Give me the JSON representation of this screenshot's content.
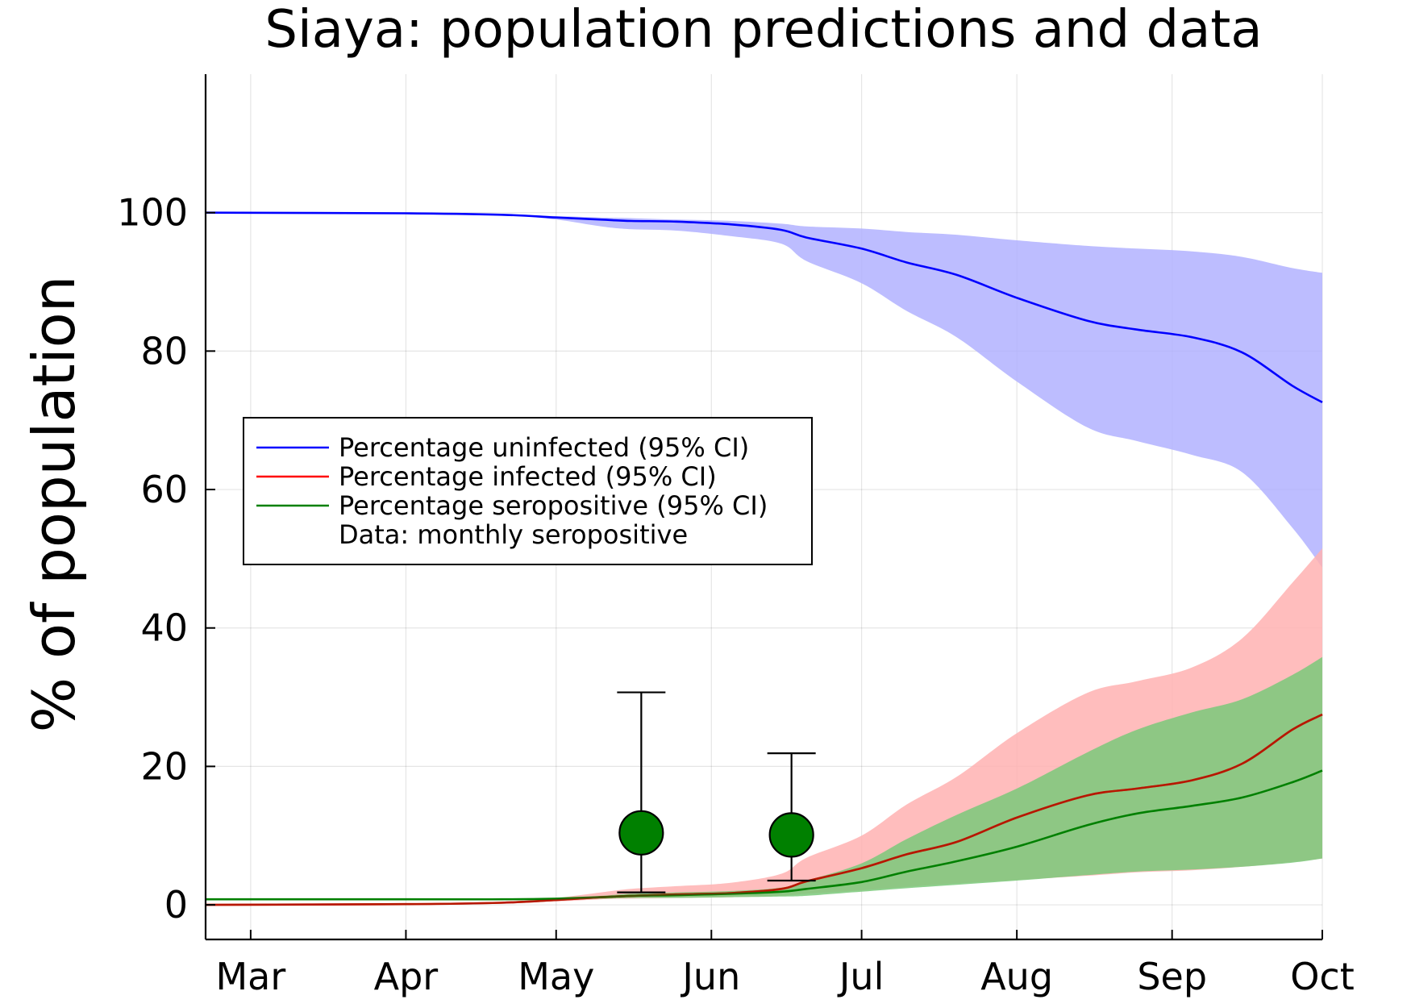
{
  "chart_data": {
    "type": "line",
    "title": "Siaya: population predictions and data",
    "xlabel": "",
    "ylabel": "% of population",
    "x_axis": {
      "type": "date",
      "range": [
        "2020-02-21",
        "2020-10-01"
      ],
      "tick_dates": [
        "2020-03-01",
        "2020-04-01",
        "2020-05-01",
        "2020-06-01",
        "2020-07-01",
        "2020-08-01",
        "2020-09-01",
        "2020-10-01"
      ],
      "tick_labels": [
        "Mar",
        "Apr",
        "May",
        "Jun",
        "Jul",
        "Aug",
        "Sep",
        "Oct"
      ]
    },
    "y_axis": {
      "range": [
        -5,
        120
      ],
      "ticks": [
        0,
        20,
        40,
        60,
        80,
        100
      ],
      "tick_labels": [
        "0",
        "20",
        "40",
        "60",
        "80",
        "100"
      ]
    },
    "grid": true,
    "legend_position": "left",
    "series": [
      {
        "name": "Percentage uninfected (95% CI)",
        "color": "#0000ff",
        "band_color": "#b2b2ff",
        "x": [
          "2020-02-21",
          "2020-04-01",
          "2020-04-20",
          "2020-05-01",
          "2020-05-10",
          "2020-05-16",
          "2020-05-25",
          "2020-06-05",
          "2020-06-15",
          "2020-06-20",
          "2020-07-01",
          "2020-07-10",
          "2020-07-20",
          "2020-08-01",
          "2020-08-15",
          "2020-08-25",
          "2020-09-05",
          "2020-09-15",
          "2020-09-25",
          "2020-10-01"
        ],
        "values": [
          100.0,
          99.9,
          99.7,
          99.3,
          99.0,
          98.8,
          98.7,
          98.3,
          97.5,
          96.4,
          94.8,
          92.8,
          91.0,
          87.7,
          84.4,
          83.1,
          82.0,
          79.8,
          75.0,
          72.6
        ],
        "lower": [
          100.0,
          99.9,
          99.7,
          99.0,
          98.0,
          97.6,
          97.4,
          96.6,
          95.5,
          93.0,
          89.8,
          85.8,
          82.0,
          75.6,
          69.0,
          67.0,
          65.0,
          62.5,
          54.5,
          48.7
        ],
        "upper": [
          100.0,
          99.9,
          99.7,
          99.5,
          99.3,
          99.2,
          99.0,
          98.8,
          98.4,
          98.0,
          97.7,
          97.2,
          96.8,
          96.0,
          95.2,
          94.8,
          94.4,
          93.6,
          92.0,
          91.3
        ]
      },
      {
        "name": "Percentage infected (95% CI)",
        "color": "#ff0000",
        "band_color": "#ffb2b2",
        "x": [
          "2020-02-21",
          "2020-04-01",
          "2020-04-20",
          "2020-05-01",
          "2020-05-10",
          "2020-05-16",
          "2020-05-25",
          "2020-06-05",
          "2020-06-15",
          "2020-06-20",
          "2020-07-01",
          "2020-07-10",
          "2020-07-20",
          "2020-08-01",
          "2020-08-15",
          "2020-08-25",
          "2020-09-05",
          "2020-09-15",
          "2020-09-25",
          "2020-10-01"
        ],
        "values": [
          0.0,
          0.1,
          0.3,
          0.7,
          1.1,
          1.3,
          1.5,
          1.7,
          2.3,
          3.4,
          5.3,
          7.3,
          9.1,
          12.6,
          15.8,
          16.8,
          18.0,
          20.4,
          25.3,
          27.5
        ],
        "lower": [
          0.0,
          0.1,
          0.3,
          0.5,
          0.8,
          0.9,
          1.0,
          1.1,
          1.3,
          1.6,
          2.1,
          2.6,
          3.1,
          3.6,
          4.2,
          4.7,
          5.0,
          5.5,
          6.2,
          6.7
        ],
        "upper": [
          0.0,
          0.1,
          0.3,
          1.0,
          1.8,
          2.3,
          2.7,
          3.2,
          4.5,
          6.8,
          10.0,
          14.5,
          18.5,
          24.8,
          30.6,
          32.3,
          34.3,
          38.5,
          46.5,
          51.5
        ]
      },
      {
        "name": "Percentage seropositive (95% CI)",
        "color": "#008000",
        "band_color": "#7ac97a",
        "x": [
          "2020-02-21",
          "2020-04-01",
          "2020-04-20",
          "2020-05-01",
          "2020-05-10",
          "2020-05-16",
          "2020-05-25",
          "2020-06-05",
          "2020-06-15",
          "2020-06-20",
          "2020-07-01",
          "2020-07-10",
          "2020-07-20",
          "2020-08-01",
          "2020-08-15",
          "2020-08-25",
          "2020-09-05",
          "2020-09-15",
          "2020-09-25",
          "2020-10-01"
        ],
        "values": [
          0.8,
          0.8,
          0.8,
          0.9,
          1.1,
          1.3,
          1.4,
          1.6,
          1.9,
          2.3,
          3.3,
          4.8,
          6.3,
          8.4,
          11.5,
          13.2,
          14.3,
          15.5,
          17.7,
          19.4
        ],
        "lower": [
          0.8,
          0.8,
          0.8,
          0.8,
          0.9,
          1.0,
          1.0,
          1.1,
          1.2,
          1.3,
          1.9,
          2.4,
          2.9,
          3.5,
          4.3,
          4.8,
          5.1,
          5.5,
          6.1,
          6.7
        ],
        "upper": [
          0.8,
          0.8,
          0.8,
          0.9,
          1.3,
          1.6,
          1.8,
          2.0,
          2.5,
          3.5,
          6.0,
          9.5,
          13.0,
          16.8,
          22.0,
          25.3,
          27.8,
          29.7,
          33.2,
          35.8
        ]
      },
      {
        "name": "Data: monthly seropositive",
        "marker": "circle",
        "color": "#008000",
        "x": [
          "2020-05-18",
          "2020-06-17"
        ],
        "values": [
          10.4,
          10.1
        ],
        "error_lower": [
          1.8,
          3.5
        ],
        "error_upper": [
          30.7,
          21.9
        ]
      }
    ]
  }
}
